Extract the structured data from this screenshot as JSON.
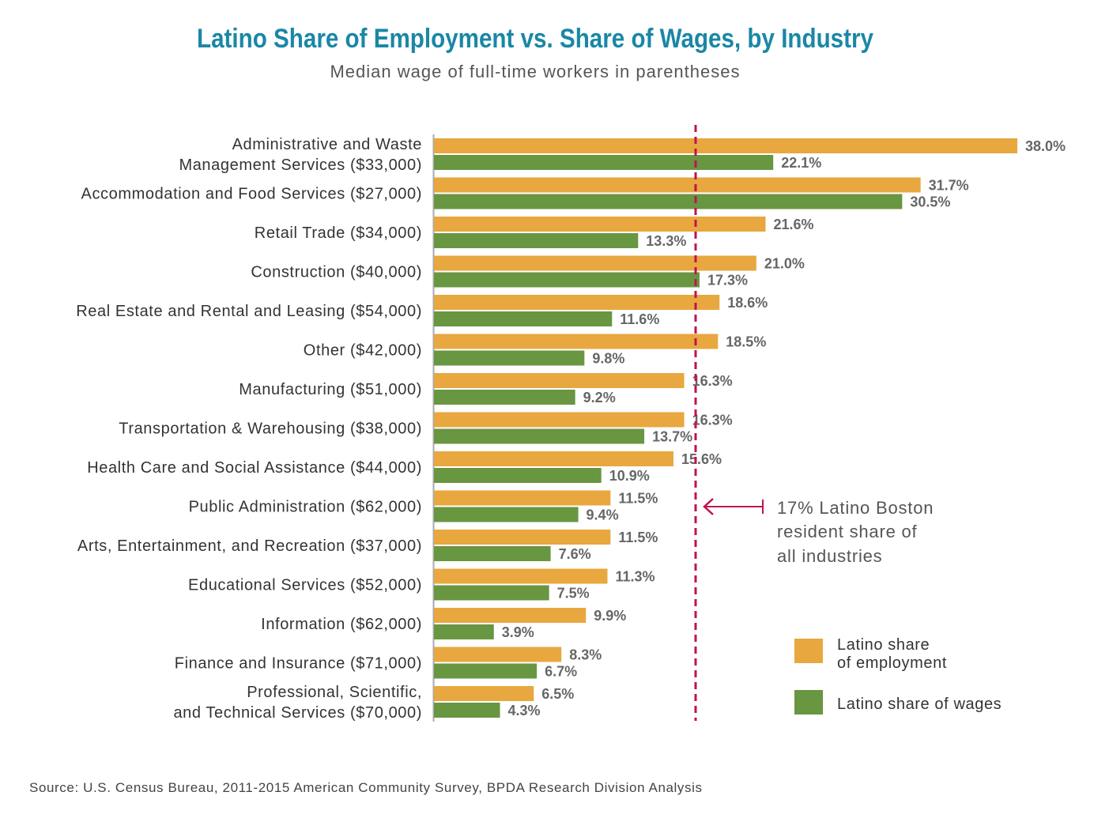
{
  "chart_data": {
    "type": "bar",
    "orientation": "horizontal",
    "title": "Latino Share of Employment vs. Share of Wages, by Industry",
    "subtitle": "Median wage of full-time workers in parentheses",
    "categories": [
      [
        "Administrative and Waste",
        "Management Services ($33,000)"
      ],
      [
        "Accommodation and Food Services ($27,000)"
      ],
      [
        "Retail Trade ($34,000)"
      ],
      [
        "Construction ($40,000)"
      ],
      [
        "Real Estate and Rental and Leasing ($54,000)"
      ],
      [
        "Other ($42,000)"
      ],
      [
        "Manufacturing ($51,000)"
      ],
      [
        "Transportation & Warehousing ($38,000)"
      ],
      [
        "Health Care and Social Assistance ($44,000)"
      ],
      [
        "Public Administration ($62,000)"
      ],
      [
        "Arts, Entertainment, and Recreation ($37,000)"
      ],
      [
        "Educational Services ($52,000)"
      ],
      [
        "Information ($62,000)"
      ],
      [
        "Finance and Insurance ($71,000)"
      ],
      [
        "Professional, Scientific,",
        "and Technical Services ($70,000)"
      ]
    ],
    "series": [
      {
        "name": "Latino share of employment",
        "color": "#e8a73f",
        "values": [
          38.0,
          31.7,
          21.6,
          21.0,
          18.6,
          18.5,
          16.3,
          16.3,
          15.6,
          11.5,
          11.5,
          11.3,
          9.9,
          8.3,
          6.5
        ],
        "labels": [
          "38.0%",
          "31.7%",
          "21.6%",
          "21.0%",
          "18.6%",
          "18.5%",
          "16.3%",
          "16.3%",
          "15.6%",
          "11.5%",
          "11.5%",
          "11.3%",
          "9.9%",
          "8.3%",
          "6.5%"
        ]
      },
      {
        "name": "Latino share of wages",
        "color": "#699641",
        "values": [
          22.1,
          30.5,
          13.3,
          17.3,
          11.6,
          9.8,
          9.2,
          13.7,
          10.9,
          9.4,
          7.6,
          7.5,
          3.9,
          6.7,
          4.3
        ],
        "labels": [
          "22.1%",
          "30.5%",
          "13.3%",
          "17.3%",
          "11.6%",
          "9.8%",
          "9.2%",
          "13.7%",
          "10.9%",
          "9.4%",
          "7.6%",
          "7.5%",
          "3.9%",
          "6.7%",
          "4.3%"
        ]
      }
    ],
    "reference_line": {
      "value": 17,
      "color": "#be1352",
      "annotation": [
        "17% Latino Boston",
        "resident share of",
        "all industries"
      ]
    },
    "legend": {
      "placement": "bottom-right",
      "entries": [
        [
          "Latino share",
          "of employment"
        ],
        [
          "Latino share of wages"
        ]
      ]
    },
    "xlim": [
      0,
      38
    ],
    "grid": false,
    "source": "Source: U.S. Census Bureau, 2011-2015 American Community Survey, BPDA Research Division Analysis"
  }
}
